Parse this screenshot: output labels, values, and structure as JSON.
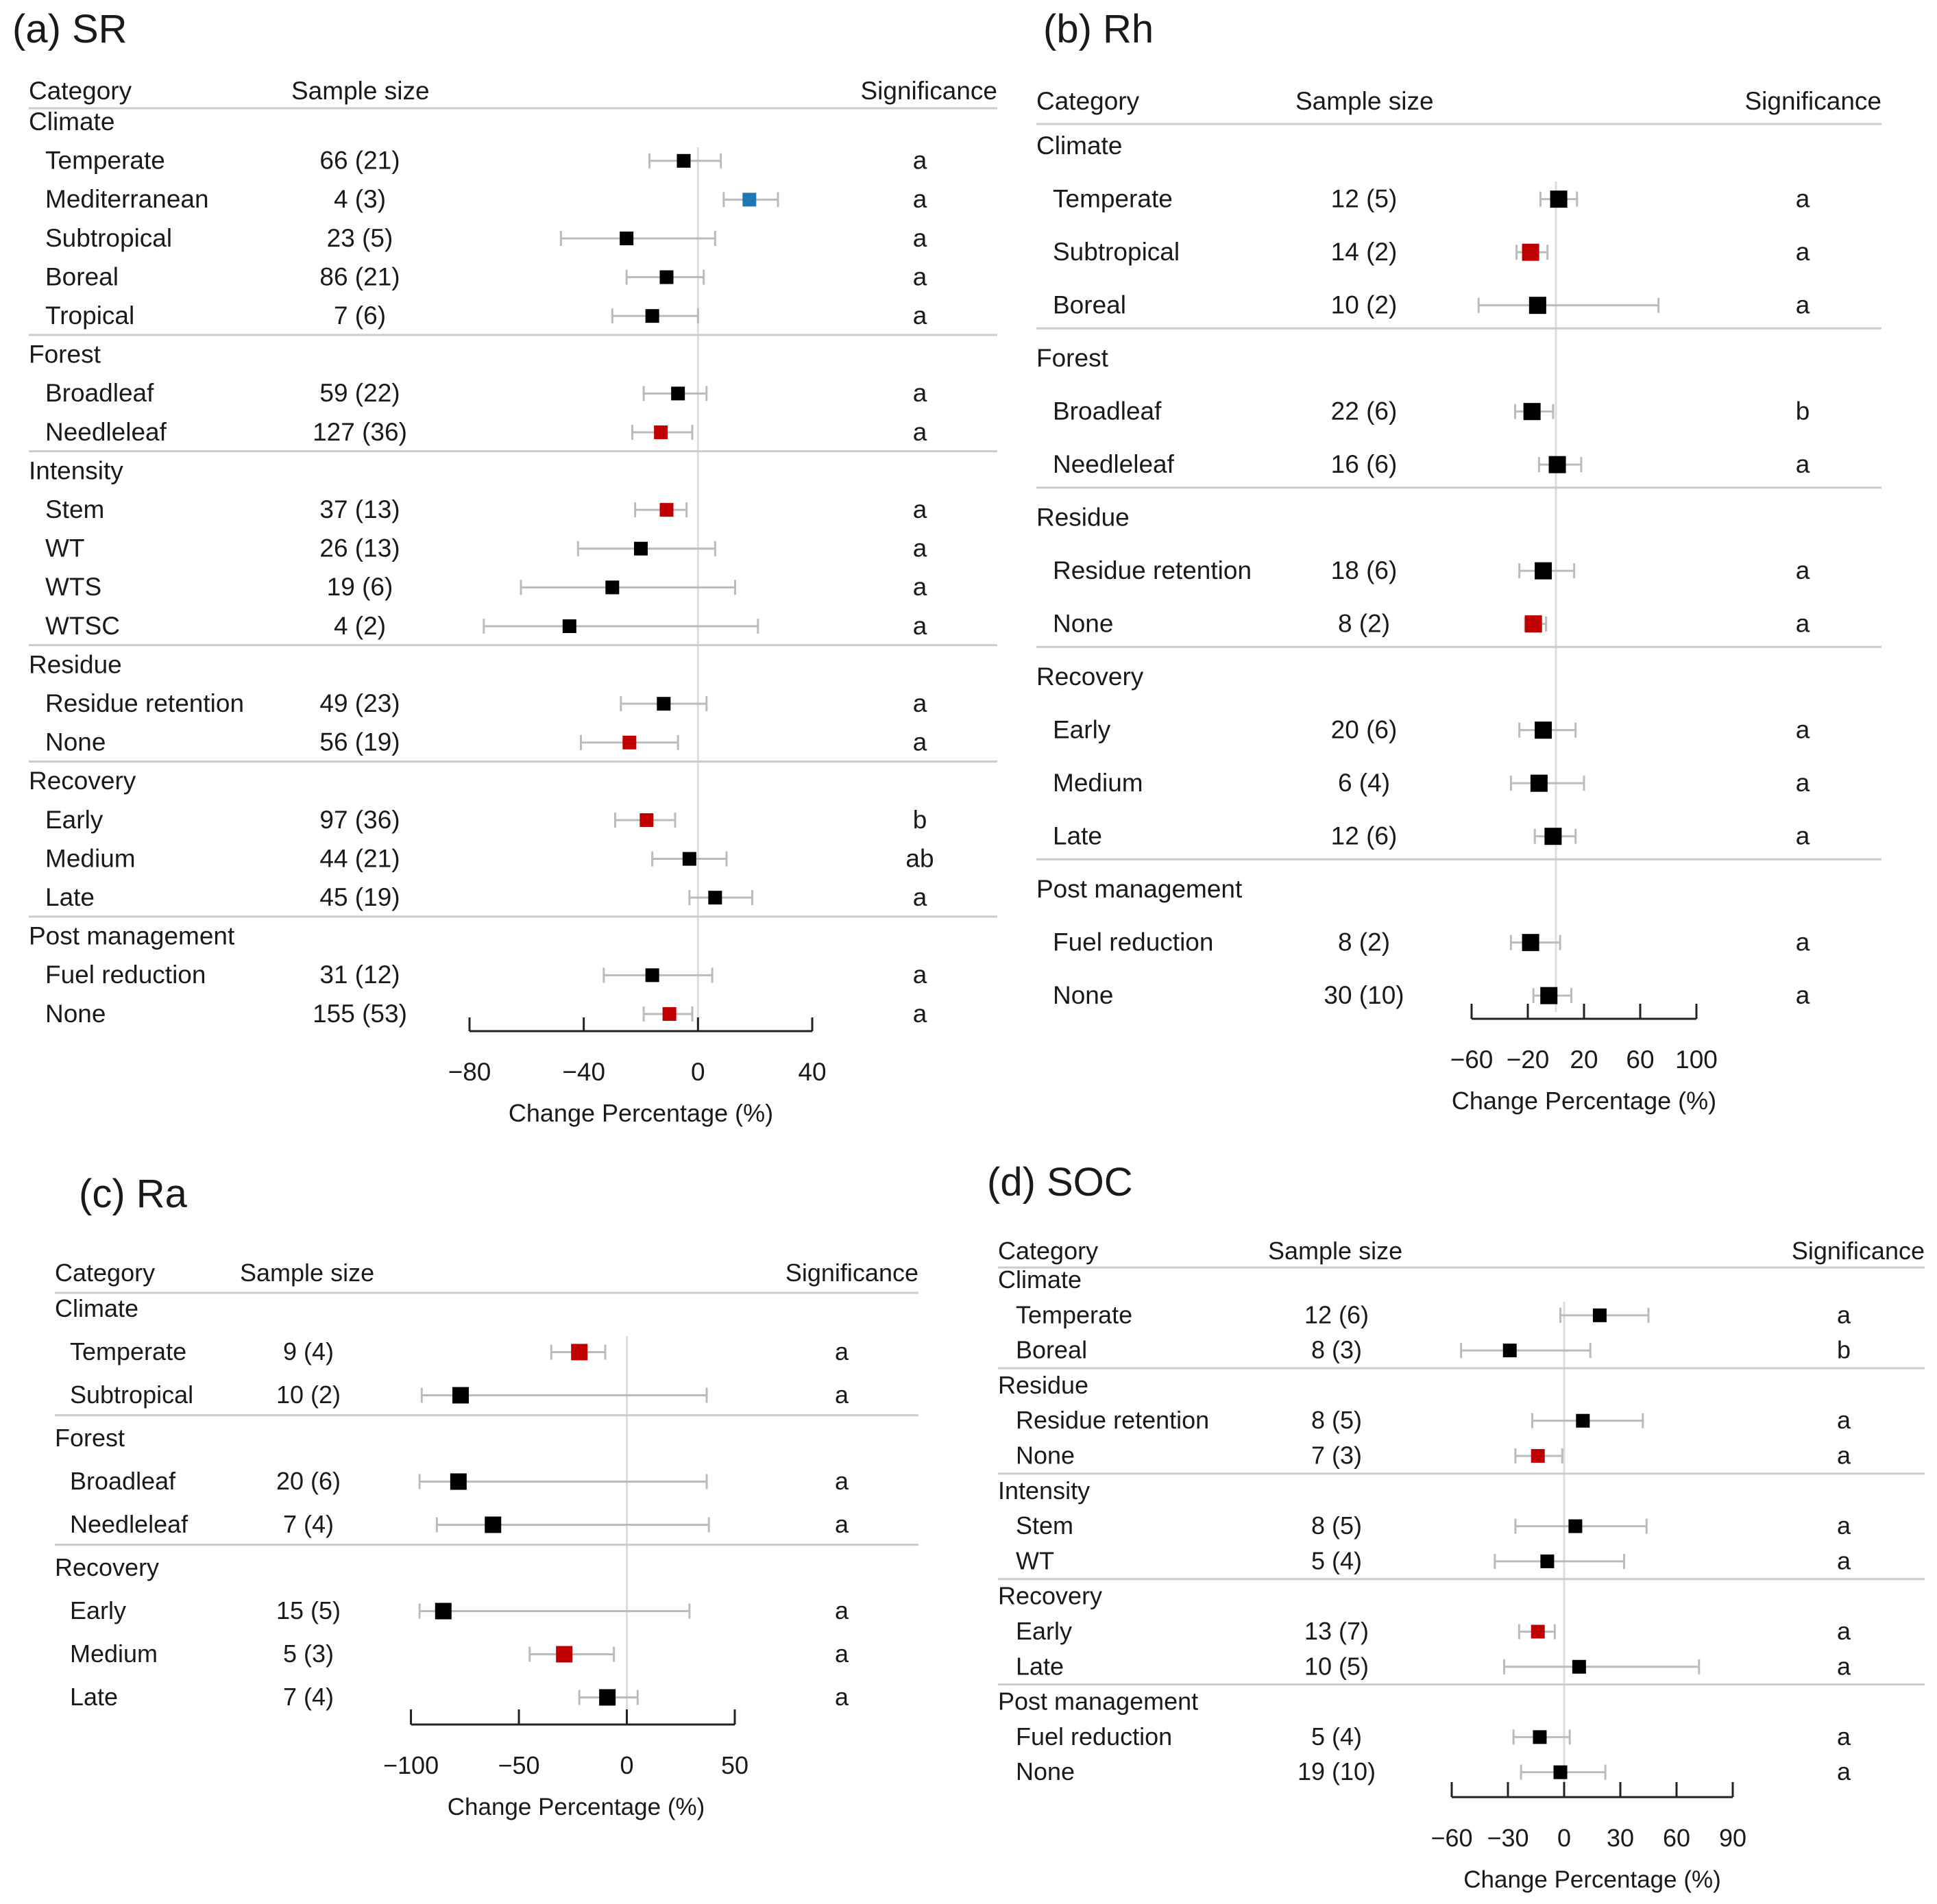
{
  "chart_data": [
    {
      "id": "sr",
      "type": "forest",
      "title": "(a) SR",
      "column_headers": {
        "category": "Category",
        "sample_size": "Sample size",
        "significance": "Significance"
      },
      "xlabel": "Change Percentage (%)",
      "xlim": [
        -80,
        40
      ],
      "xticks": [
        -80,
        -40,
        0,
        40
      ],
      "xtick_labels": [
        "−80",
        "−40",
        "0",
        "40"
      ],
      "groups": [
        {
          "name": "Climate",
          "rows": [
            {
              "label": "Temperate",
              "n": "66 (21)",
              "mean": -5,
              "lo": -17,
              "hi": 8,
              "sig": "a",
              "color": "#000000"
            },
            {
              "label": "Mediterranean",
              "n": "4 (3)",
              "mean": 18,
              "lo": 9,
              "hi": 28,
              "sig": "a",
              "color": "#1f77b4"
            },
            {
              "label": "Subtropical",
              "n": "23 (5)",
              "mean": -25,
              "lo": -48,
              "hi": 6,
              "sig": "a",
              "color": "#000000"
            },
            {
              "label": "Boreal",
              "n": "86 (21)",
              "mean": -11,
              "lo": -25,
              "hi": 2,
              "sig": "a",
              "color": "#000000"
            },
            {
              "label": "Tropical",
              "n": "7 (6)",
              "mean": -16,
              "lo": -30,
              "hi": 0,
              "sig": "a",
              "color": "#000000"
            }
          ]
        },
        {
          "name": "Forest",
          "rows": [
            {
              "label": "Broadleaf",
              "n": "59 (22)",
              "mean": -7,
              "lo": -19,
              "hi": 3,
              "sig": "a",
              "color": "#000000"
            },
            {
              "label": "Needleleaf",
              "n": "127 (36)",
              "mean": -13,
              "lo": -23,
              "hi": -2,
              "sig": "a",
              "color": "#c00000"
            }
          ]
        },
        {
          "name": "Intensity",
          "rows": [
            {
              "label": "Stem",
              "n": "37 (13)",
              "mean": -11,
              "lo": -22,
              "hi": -4,
              "sig": "a",
              "color": "#c00000"
            },
            {
              "label": "WT",
              "n": "26 (13)",
              "mean": -20,
              "lo": -42,
              "hi": 6,
              "sig": "a",
              "color": "#000000"
            },
            {
              "label": "WTS",
              "n": "19 (6)",
              "mean": -30,
              "lo": -62,
              "hi": 13,
              "sig": "a",
              "color": "#000000"
            },
            {
              "label": "WTSC",
              "n": "4 (2)",
              "mean": -45,
              "lo": -75,
              "hi": 21,
              "sig": "a",
              "color": "#000000"
            }
          ]
        },
        {
          "name": "Residue",
          "rows": [
            {
              "label": "Residue retention",
              "n": "49 (23)",
              "mean": -12,
              "lo": -27,
              "hi": 3,
              "sig": "a",
              "color": "#000000"
            },
            {
              "label": "None",
              "n": "56 (19)",
              "mean": -24,
              "lo": -41,
              "hi": -7,
              "sig": "a",
              "color": "#c00000"
            }
          ]
        },
        {
          "name": "Recovery",
          "rows": [
            {
              "label": "Early",
              "n": "97 (36)",
              "mean": -18,
              "lo": -29,
              "hi": -8,
              "sig": "b",
              "color": "#c00000"
            },
            {
              "label": "Medium",
              "n": "44 (21)",
              "mean": -3,
              "lo": -16,
              "hi": 10,
              "sig": "ab",
              "color": "#000000"
            },
            {
              "label": "Late",
              "n": "45 (19)",
              "mean": 6,
              "lo": -3,
              "hi": 19,
              "sig": "a",
              "color": "#000000"
            }
          ]
        },
        {
          "name": "Post management",
          "rows": [
            {
              "label": "Fuel reduction",
              "n": "31 (12)",
              "mean": -16,
              "lo": -33,
              "hi": 5,
              "sig": "a",
              "color": "#000000"
            },
            {
              "label": "None",
              "n": "155 (53)",
              "mean": -10,
              "lo": -19,
              "hi": -2,
              "sig": "a",
              "color": "#c00000"
            }
          ]
        }
      ]
    },
    {
      "id": "rh",
      "type": "forest",
      "title": "(b) Rh",
      "column_headers": {
        "category": "Category",
        "sample_size": "Sample size",
        "significance": "Significance"
      },
      "xlabel": "Change Percentage (%)",
      "xlim": [
        -60,
        100
      ],
      "xticks": [
        -60,
        -20,
        20,
        60,
        100
      ],
      "xtick_labels": [
        "−60",
        "−20",
        "20",
        "60",
        "100"
      ],
      "groups": [
        {
          "name": "Climate",
          "rows": [
            {
              "label": "Temperate",
              "n": "12 (5)",
              "mean": 2,
              "lo": -11,
              "hi": 15,
              "sig": "a",
              "color": "#000000"
            },
            {
              "label": "Subtropical",
              "n": "14 (2)",
              "mean": -18,
              "lo": -28,
              "hi": -6,
              "sig": "a",
              "color": "#c00000"
            },
            {
              "label": "Boreal",
              "n": "10 (2)",
              "mean": -13,
              "lo": -55,
              "hi": 73,
              "sig": "a",
              "color": "#000000"
            }
          ]
        },
        {
          "name": "Forest",
          "rows": [
            {
              "label": "Broadleaf",
              "n": "22 (6)",
              "mean": -17,
              "lo": -29,
              "hi": -2,
              "sig": "b",
              "color": "#000000"
            },
            {
              "label": "Needleleaf",
              "n": "16 (6)",
              "mean": 1,
              "lo": -12,
              "hi": 18,
              "sig": "a",
              "color": "#000000"
            }
          ]
        },
        {
          "name": "Residue",
          "rows": [
            {
              "label": "Residue retention",
              "n": "18 (6)",
              "mean": -9,
              "lo": -26,
              "hi": 13,
              "sig": "a",
              "color": "#000000"
            },
            {
              "label": "None",
              "n": "8 (2)",
              "mean": -16,
              "lo": -22,
              "hi": -7,
              "sig": "a",
              "color": "#c00000"
            }
          ]
        },
        {
          "name": "Recovery",
          "rows": [
            {
              "label": "Early",
              "n": "20 (6)",
              "mean": -9,
              "lo": -26,
              "hi": 14,
              "sig": "a",
              "color": "#000000"
            },
            {
              "label": "Medium",
              "n": "6 (4)",
              "mean": -12,
              "lo": -32,
              "hi": 20,
              "sig": "a",
              "color": "#000000"
            },
            {
              "label": "Late",
              "n": "12 (6)",
              "mean": -2,
              "lo": -15,
              "hi": 14,
              "sig": "a",
              "color": "#000000"
            }
          ]
        },
        {
          "name": "Post management",
          "rows": [
            {
              "label": "Fuel reduction",
              "n": "8 (2)",
              "mean": -18,
              "lo": -32,
              "hi": 3,
              "sig": "a",
              "color": "#000000"
            },
            {
              "label": "None",
              "n": "30 (10)",
              "mean": -5,
              "lo": -16,
              "hi": 11,
              "sig": "a",
              "color": "#000000"
            }
          ]
        }
      ]
    },
    {
      "id": "ra",
      "type": "forest",
      "title": "(c) Ra",
      "column_headers": {
        "category": "Category",
        "sample_size": "Sample size",
        "significance": "Significance"
      },
      "xlabel": "Change Percentage (%)",
      "xlim": [
        -97,
        50
      ],
      "xticks": [
        -100,
        -50,
        0,
        50
      ],
      "xtick_labels": [
        "−100",
        "−50",
        "0",
        "50"
      ],
      "groups": [
        {
          "name": "Climate",
          "rows": [
            {
              "label": "Temperate",
              "n": "9 (4)",
              "mean": -22,
              "lo": -35,
              "hi": -10,
              "sig": "a",
              "color": "#c00000"
            },
            {
              "label": "Subtropical",
              "n": "10 (2)",
              "mean": -77,
              "lo": -95,
              "hi": 37,
              "sig": "a",
              "color": "#000000"
            }
          ]
        },
        {
          "name": "Forest",
          "rows": [
            {
              "label": "Broadleaf",
              "n": "20 (6)",
              "mean": -78,
              "lo": -96,
              "hi": 37,
              "sig": "a",
              "color": "#000000"
            },
            {
              "label": "Needleleaf",
              "n": "7 (4)",
              "mean": -62,
              "lo": -88,
              "hi": 38,
              "sig": "a",
              "color": "#000000"
            }
          ]
        },
        {
          "name": "Recovery",
          "rows": [
            {
              "label": "Early",
              "n": "15 (5)",
              "mean": -85,
              "lo": -96,
              "hi": 29,
              "sig": "a",
              "color": "#000000"
            },
            {
              "label": "Medium",
              "n": "5 (3)",
              "mean": -29,
              "lo": -45,
              "hi": -6,
              "sig": "a",
              "color": "#c00000"
            },
            {
              "label": "Late",
              "n": "7 (4)",
              "mean": -9,
              "lo": -22,
              "hi": 5,
              "sig": "a",
              "color": "#000000"
            }
          ]
        }
      ]
    },
    {
      "id": "soc",
      "type": "forest",
      "title": "(d) SOC",
      "column_headers": {
        "category": "Category",
        "sample_size": "Sample size",
        "significance": "Significance"
      },
      "xlabel": "Change Percentage (%)",
      "xlim": [
        -60,
        90
      ],
      "xticks": [
        -60,
        -30,
        0,
        30,
        60,
        90
      ],
      "xtick_labels": [
        "−60",
        "−30",
        "0",
        "30",
        "60",
        "90"
      ],
      "groups": [
        {
          "name": "Climate",
          "rows": [
            {
              "label": "Temperate",
              "n": "12 (6)",
              "mean": 19,
              "lo": -2,
              "hi": 45,
              "sig": "a",
              "color": "#000000"
            },
            {
              "label": "Boreal",
              "n": "8 (3)",
              "mean": -29,
              "lo": -55,
              "hi": 14,
              "sig": "b",
              "color": "#000000"
            }
          ]
        },
        {
          "name": "Residue",
          "rows": [
            {
              "label": "Residue retention",
              "n": "8 (5)",
              "mean": 10,
              "lo": -17,
              "hi": 42,
              "sig": "a",
              "color": "#000000"
            },
            {
              "label": "None",
              "n": "7 (3)",
              "mean": -14,
              "lo": -26,
              "hi": -1,
              "sig": "a",
              "color": "#c00000"
            }
          ]
        },
        {
          "name": "Intensity",
          "rows": [
            {
              "label": "Stem",
              "n": "8 (5)",
              "mean": 6,
              "lo": -26,
              "hi": 44,
              "sig": "a",
              "color": "#000000"
            },
            {
              "label": "WT",
              "n": "5 (4)",
              "mean": -9,
              "lo": -37,
              "hi": 32,
              "sig": "a",
              "color": "#000000"
            }
          ]
        },
        {
          "name": "Recovery",
          "rows": [
            {
              "label": "Early",
              "n": "13 (7)",
              "mean": -14,
              "lo": -24,
              "hi": -5,
              "sig": "a",
              "color": "#c00000"
            },
            {
              "label": "Late",
              "n": "10 (5)",
              "mean": 8,
              "lo": -32,
              "hi": 72,
              "sig": "a",
              "color": "#000000"
            }
          ]
        },
        {
          "name": "Post management",
          "rows": [
            {
              "label": "Fuel reduction",
              "n": "5 (4)",
              "mean": -13,
              "lo": -27,
              "hi": 3,
              "sig": "a",
              "color": "#000000"
            },
            {
              "label": "None",
              "n": "19 (10)",
              "mean": -2,
              "lo": -23,
              "hi": 22,
              "sig": "a",
              "color": "#000000"
            }
          ]
        }
      ]
    }
  ]
}
